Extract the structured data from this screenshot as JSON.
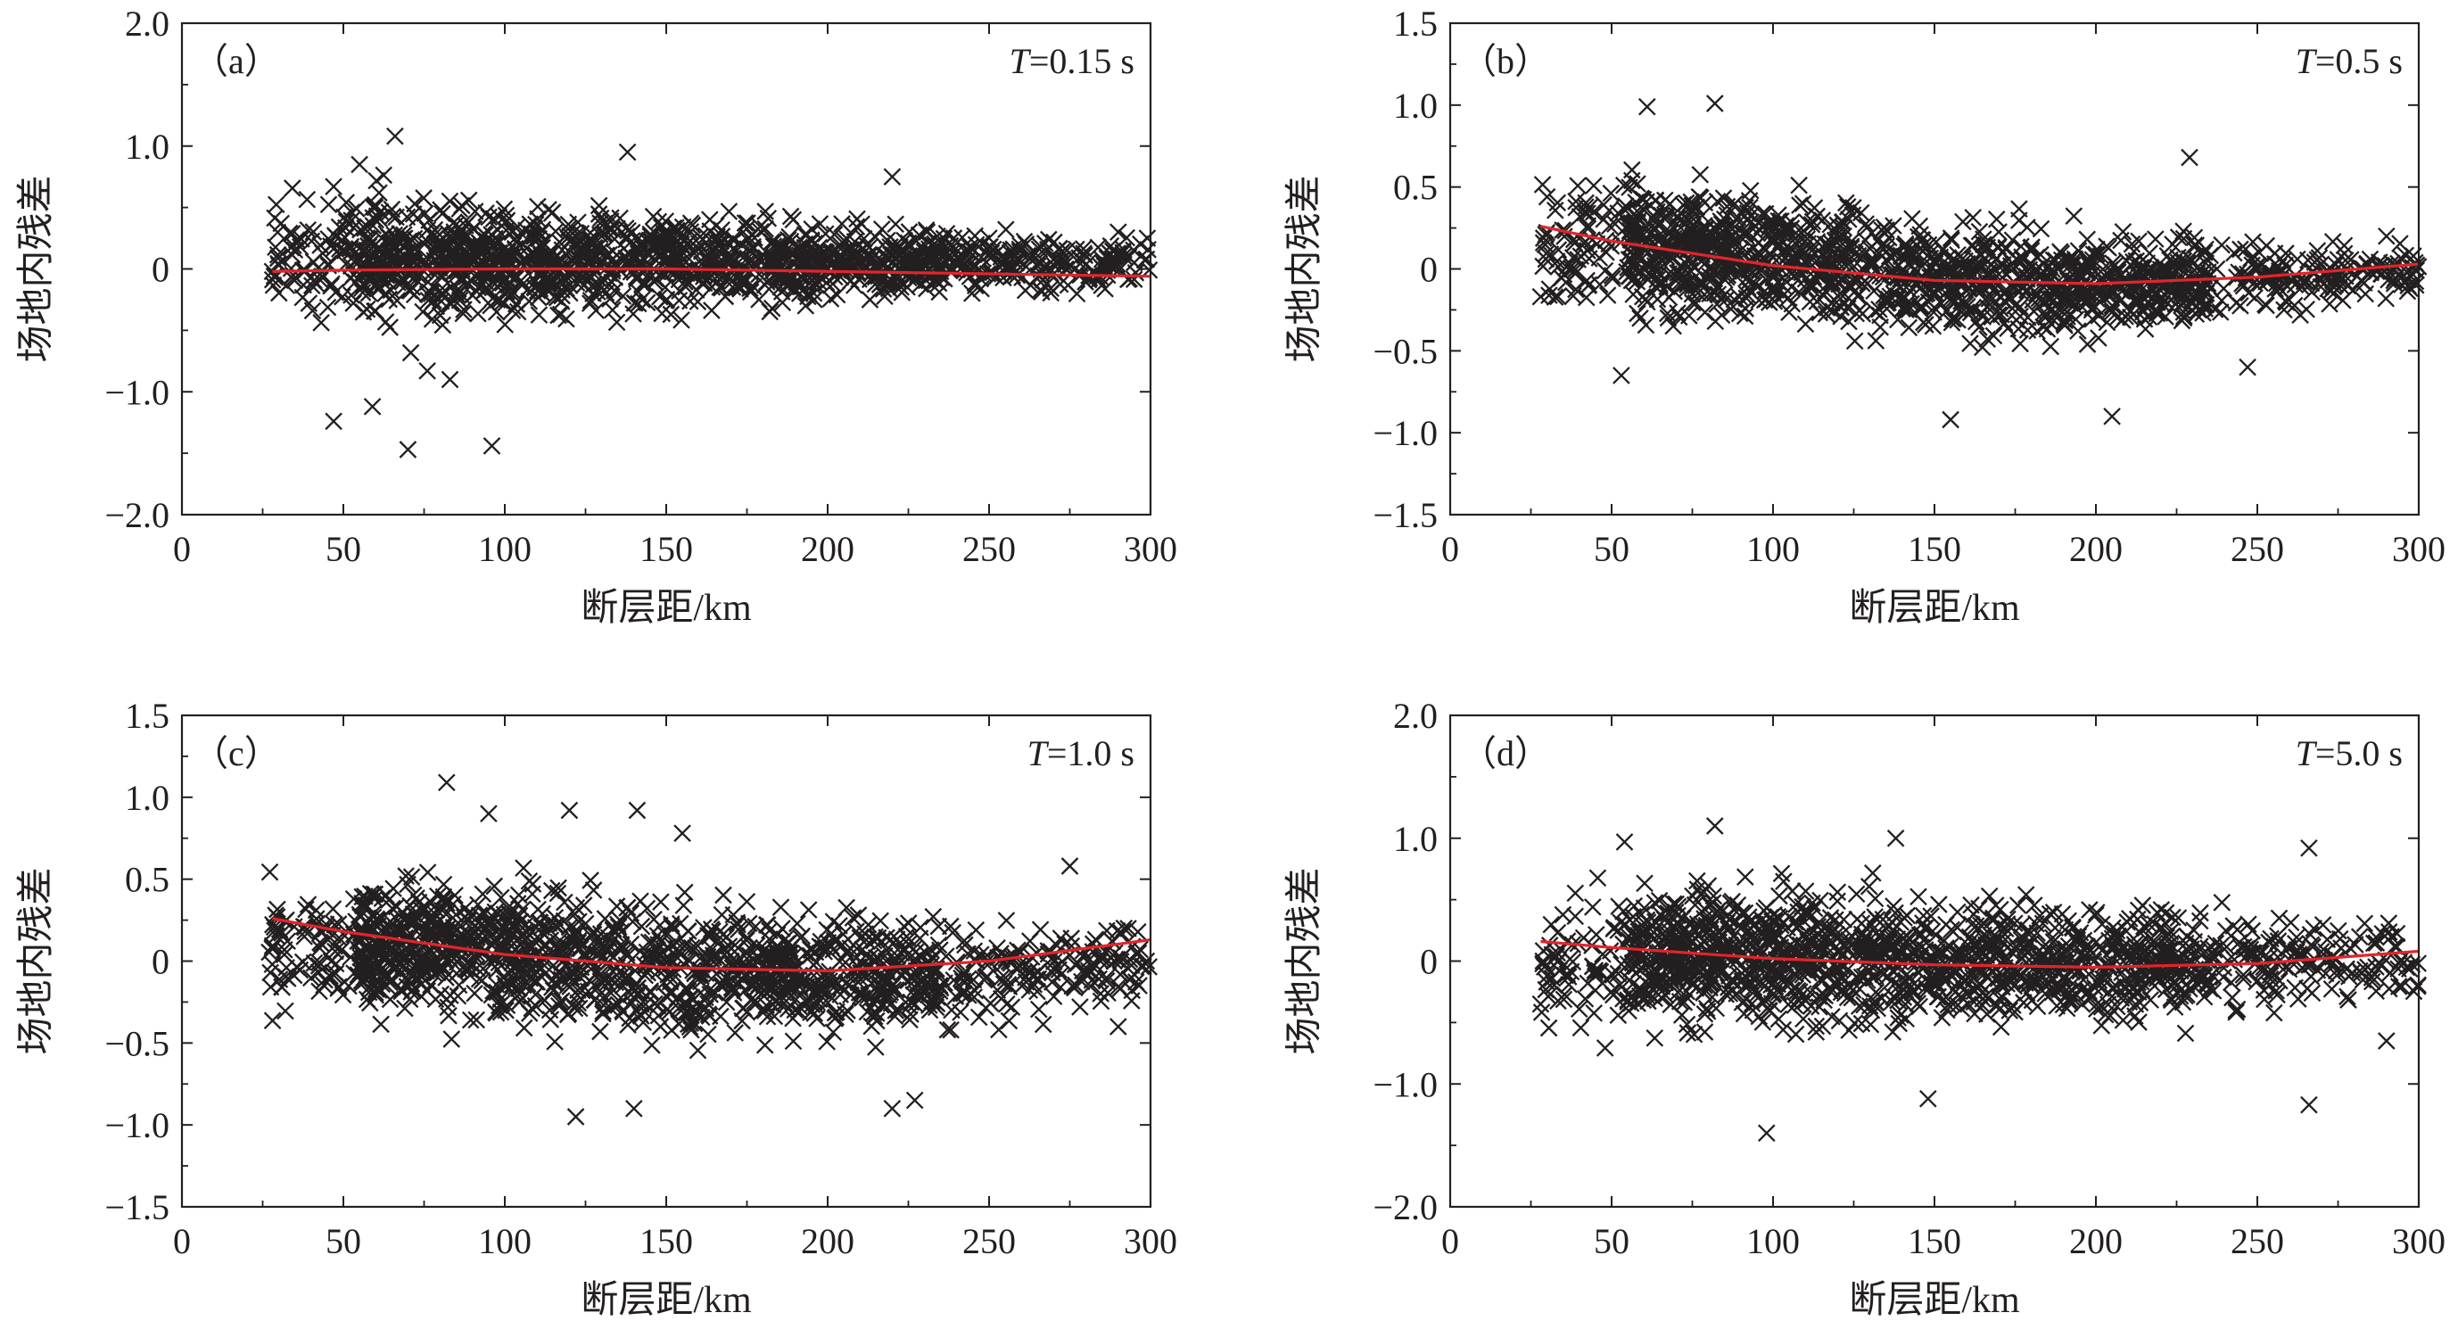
{
  "chart_data": [
    {
      "type": "scatter",
      "panel_label": "（a）",
      "period_label": "T=0.15 s",
      "xlabel": "断层距/km",
      "ylabel": "场地内残差",
      "xlim": [
        0,
        300
      ],
      "ylim": [
        -2.0,
        2.0
      ],
      "xticks": [
        0,
        50,
        100,
        150,
        200,
        250,
        300
      ],
      "xtick_labels": [
        "0",
        "50",
        "100",
        "150",
        "200",
        "250",
        "300"
      ],
      "yticks": [
        2.0,
        1.0,
        0,
        -1.0,
        -2.0
      ],
      "ytick_labels": [
        "2.0",
        "1.0",
        "0",
        "−1.0",
        "−2.0"
      ],
      "scatter_summary": {
        "approx_points": 1500,
        "x_range": [
          27,
          300
        ],
        "cloud": [
          [
            50,
            -0.75,
            0.95
          ],
          [
            100,
            -0.65,
            0.75
          ],
          [
            150,
            -0.55,
            0.65
          ],
          [
            200,
            -0.45,
            0.55
          ],
          [
            250,
            -0.35,
            0.45
          ],
          [
            300,
            -0.25,
            0.3
          ]
        ],
        "outliers": [
          [
            28,
            -0.02
          ],
          [
            30,
            0.03
          ],
          [
            47,
            -1.24
          ],
          [
            47,
            0.67
          ],
          [
            55,
            0.85
          ],
          [
            59,
            -1.12
          ],
          [
            66,
            1.08
          ],
          [
            70,
            -1.47
          ],
          [
            96,
            -1.44
          ],
          [
            76,
            -0.83
          ],
          [
            83,
            -0.9
          ],
          [
            138,
            0.95
          ],
          [
            220,
            0.75
          ],
          [
            290,
            0.3
          ],
          [
            299,
            0.25
          ]
        ]
      },
      "fit": {
        "name": "",
        "color": "#e3242b",
        "x": [
          28,
          50,
          100,
          150,
          200,
          250,
          300
        ],
        "y": [
          -0.02,
          -0.01,
          0.0,
          0.0,
          -0.02,
          -0.04,
          -0.06
        ]
      },
      "marker_color": "#231f20",
      "grid": false
    },
    {
      "type": "scatter",
      "panel_label": "（b）",
      "period_label": "T=0.5 s",
      "xlabel": "断层距/km",
      "ylabel": "场地内残差",
      "xlim": [
        0,
        300
      ],
      "ylim": [
        -1.5,
        1.5
      ],
      "xticks": [
        0,
        50,
        100,
        150,
        200,
        250,
        300
      ],
      "xtick_labels": [
        "0",
        "50",
        "100",
        "150",
        "200",
        "250",
        "300"
      ],
      "yticks": [
        1.5,
        1.0,
        0.5,
        0,
        -0.5,
        -1.0,
        -1.5
      ],
      "ytick_labels": [
        "1.5",
        "1.0",
        "0.5",
        "0",
        "−0.5",
        "−1.0",
        "−1.5"
      ],
      "scatter_summary": {
        "approx_points": 1500,
        "x_range": [
          28,
          300
        ],
        "cloud": [
          [
            50,
            -0.45,
            0.75
          ],
          [
            100,
            -0.55,
            0.65
          ],
          [
            150,
            -0.6,
            0.5
          ],
          [
            200,
            -0.55,
            0.35
          ],
          [
            250,
            -0.45,
            0.3
          ],
          [
            300,
            -0.25,
            0.25
          ]
        ],
        "outliers": [
          [
            28,
            -0.17
          ],
          [
            30,
            0.44
          ],
          [
            53,
            -0.65
          ],
          [
            61,
            0.99
          ],
          [
            82,
            1.01
          ],
          [
            155,
            -0.92
          ],
          [
            205,
            -0.9
          ],
          [
            229,
            0.68
          ],
          [
            247,
            -0.6
          ],
          [
            290,
            0.2
          ]
        ]
      },
      "fit": {
        "name": "",
        "color": "#e3242b",
        "x": [
          28,
          50,
          100,
          150,
          200,
          250,
          300
        ],
        "y": [
          0.26,
          0.17,
          0.02,
          -0.07,
          -0.09,
          -0.05,
          0.03
        ]
      },
      "marker_color": "#231f20",
      "grid": false
    },
    {
      "type": "scatter",
      "panel_label": "（c）",
      "period_label": "T=1.0 s",
      "xlabel": "断层距/km",
      "ylabel": "场地内残差",
      "xlim": [
        0,
        300
      ],
      "ylim": [
        -1.5,
        1.5
      ],
      "xticks": [
        0,
        50,
        100,
        150,
        200,
        250,
        300
      ],
      "xtick_labels": [
        "0",
        "50",
        "100",
        "150",
        "200",
        "250",
        "300"
      ],
      "yticks": [
        1.5,
        1.0,
        0.5,
        0,
        -0.5,
        -1.0,
        -1.5
      ],
      "ytick_labels": [
        "1.5",
        "1.0",
        "0.5",
        "0",
        "−0.5",
        "−1.0",
        "−1.5"
      ],
      "scatter_summary": {
        "approx_points": 1500,
        "x_range": [
          27,
          300
        ],
        "cloud": [
          [
            50,
            -0.45,
            0.65
          ],
          [
            100,
            -0.6,
            0.7
          ],
          [
            150,
            -0.65,
            0.55
          ],
          [
            200,
            -0.6,
            0.45
          ],
          [
            250,
            -0.55,
            0.4
          ],
          [
            300,
            -0.4,
            0.35
          ]
        ],
        "outliers": [
          [
            28,
            -0.02
          ],
          [
            29,
            0.28
          ],
          [
            82,
            1.09
          ],
          [
            95,
            0.9
          ],
          [
            120,
            0.92
          ],
          [
            122,
            -0.95
          ],
          [
            140,
            -0.9
          ],
          [
            141,
            0.92
          ],
          [
            155,
            0.78
          ],
          [
            220,
            -0.9
          ],
          [
            227,
            -0.85
          ],
          [
            275,
            0.58
          ],
          [
            290,
            -0.4
          ]
        ]
      },
      "fit": {
        "name": "",
        "color": "#e3242b",
        "x": [
          28,
          50,
          100,
          150,
          200,
          250,
          300
        ],
        "y": [
          0.26,
          0.18,
          0.04,
          -0.04,
          -0.06,
          0.0,
          0.13
        ]
      },
      "marker_color": "#231f20",
      "grid": false
    },
    {
      "type": "scatter",
      "panel_label": "（d）",
      "period_label": "T=5.0 s",
      "xlabel": "断层距/km",
      "ylabel": "场地内残差",
      "xlim": [
        0,
        300
      ],
      "ylim": [
        -2.0,
        2.0
      ],
      "xticks": [
        0,
        50,
        100,
        150,
        200,
        250,
        300
      ],
      "xtick_labels": [
        "0",
        "50",
        "100",
        "150",
        "200",
        "250",
        "300"
      ],
      "yticks": [
        2.0,
        1.0,
        0,
        -1.0,
        -2.0
      ],
      "ytick_labels": [
        "2.0",
        "1.0",
        "0",
        "−1.0",
        "−2.0"
      ],
      "scatter_summary": {
        "approx_points": 1500,
        "x_range": [
          28,
          300
        ],
        "cloud": [
          [
            50,
            -0.8,
            0.85
          ],
          [
            100,
            -0.85,
            0.95
          ],
          [
            150,
            -0.8,
            0.75
          ],
          [
            200,
            -0.7,
            0.65
          ],
          [
            250,
            -0.6,
            0.55
          ],
          [
            300,
            -0.5,
            0.5
          ]
        ],
        "outliers": [
          [
            28,
            -0.35
          ],
          [
            30,
            -0.12
          ],
          [
            54,
            0.97
          ],
          [
            82,
            1.1
          ],
          [
            98,
            -1.4
          ],
          [
            138,
            1.0
          ],
          [
            148,
            -1.12
          ],
          [
            266,
            -1.17
          ],
          [
            266,
            0.92
          ],
          [
            290,
            -0.65
          ]
        ]
      },
      "fit": {
        "name": "",
        "color": "#e3242b",
        "x": [
          28,
          50,
          100,
          150,
          200,
          250,
          300
        ],
        "y": [
          0.16,
          0.11,
          0.02,
          -0.03,
          -0.05,
          -0.02,
          0.08
        ]
      },
      "marker_color": "#231f20",
      "grid": false
    }
  ]
}
